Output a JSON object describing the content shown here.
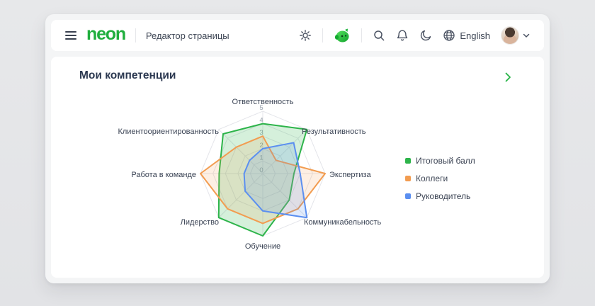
{
  "header": {
    "logo": "neon",
    "page_title": "Редактор страницы",
    "language": "English"
  },
  "card": {
    "title": "Мои компетенции"
  },
  "colors": {
    "accent_green": "#1fae3d",
    "grid_line": "#e4e5ea",
    "tick_text": "#9aa3ad",
    "axis_text": "#3a4354"
  },
  "chart_data": {
    "type": "radar",
    "title": "Мои компетенции",
    "categories": [
      "Ответственность",
      "Результативность",
      "Экспертиза",
      "Коммуникабельность",
      "Обучение",
      "Лидерство",
      "Работа в команде",
      "Клиентоориентированность"
    ],
    "series": [
      {
        "name": "Итоговый балл",
        "color": "#2db44a",
        "fill": "rgba(45,180,74,0.20)",
        "values": [
          4,
          5,
          2.5,
          3,
          5,
          5,
          3.5,
          4.5
        ]
      },
      {
        "name": "Коллеги",
        "color": "#f29c50",
        "fill": "rgba(242,156,80,0.16)",
        "values": [
          3,
          1.5,
          5,
          4,
          4,
          4,
          5,
          3
        ]
      },
      {
        "name": "Руководитель",
        "color": "#5b8ff0",
        "fill": "rgba(91,143,240,0.18)",
        "values": [
          2,
          3.5,
          3,
          5,
          3,
          2,
          1.5,
          1.5
        ]
      }
    ],
    "rlim": [
      0,
      5
    ],
    "ticks": [
      0,
      1,
      2,
      3,
      4,
      5
    ],
    "grid": "polygon",
    "legend_position": "right"
  }
}
